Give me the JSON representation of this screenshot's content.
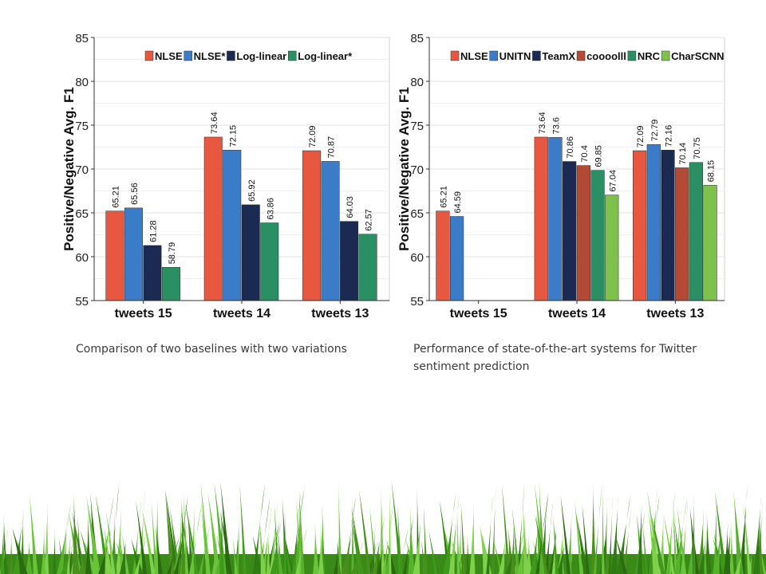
{
  "chart_data": [
    {
      "type": "bar",
      "ylabel": "Positive/Negative Avg. F1",
      "ylim": [
        55,
        85
      ],
      "yticks": [
        55,
        60,
        65,
        70,
        75,
        80,
        85
      ],
      "categories": [
        "tweets 15",
        "tweets 14",
        "tweets 13"
      ],
      "legend_position": "top",
      "grid": true,
      "series": [
        {
          "name": "NLSE",
          "color": "#e8573f",
          "values": [
            65.21,
            73.64,
            72.09
          ]
        },
        {
          "name": "NLSE*",
          "color": "#3a7cc7",
          "values": [
            65.56,
            72.15,
            70.87
          ]
        },
        {
          "name": "Log-linear",
          "color": "#1a2a52",
          "values": [
            61.28,
            65.92,
            64.03
          ]
        },
        {
          "name": "Log-linear*",
          "color": "#2a9063",
          "values": [
            58.79,
            63.86,
            62.57
          ]
        }
      ],
      "caption": "Comparison of two baselines with two variations"
    },
    {
      "type": "bar",
      "ylabel": "Positive/Negative Avg. F1",
      "ylim": [
        55,
        85
      ],
      "yticks": [
        55,
        60,
        65,
        70,
        75,
        80,
        85
      ],
      "categories": [
        "tweets 15",
        "tweets 14",
        "tweets 13"
      ],
      "legend_position": "top",
      "grid": true,
      "series": [
        {
          "name": "NLSE",
          "color": "#e8573f",
          "values": [
            65.21,
            73.64,
            72.09
          ]
        },
        {
          "name": "UNITN",
          "color": "#3a7cc7",
          "values": [
            64.59,
            73.6,
            72.79
          ]
        },
        {
          "name": "TeamX",
          "color": "#1a2a52",
          "values": [
            null,
            70.86,
            72.16
          ]
        },
        {
          "name": "coooolll",
          "color": "#b24a35",
          "values": [
            null,
            70.4,
            70.14
          ]
        },
        {
          "name": "NRC",
          "color": "#2a9063",
          "values": [
            null,
            69.85,
            70.75
          ]
        },
        {
          "name": "CharSCNN",
          "color": "#7ec14c",
          "values": [
            null,
            67.04,
            68.15
          ]
        }
      ],
      "caption": "Performance of state-of-the-art systems for Twitter sentiment prediction"
    }
  ]
}
